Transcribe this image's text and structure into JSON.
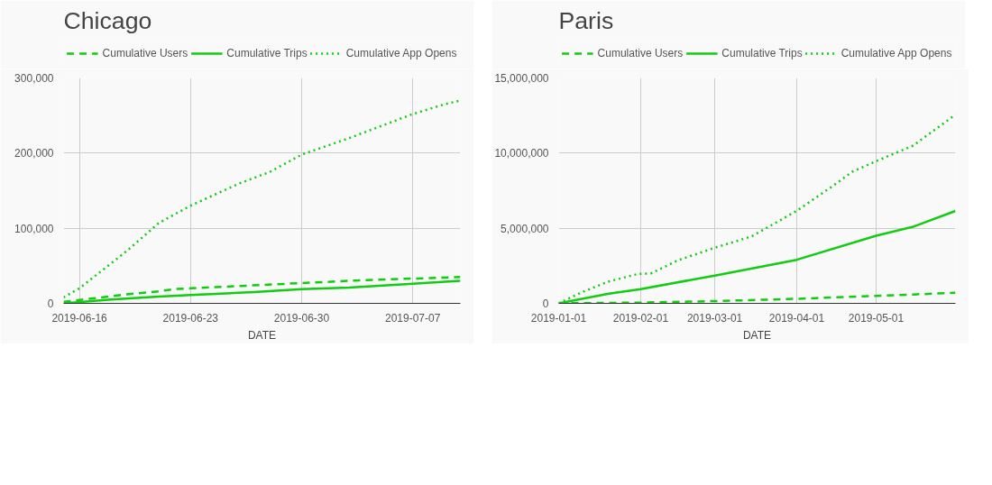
{
  "chart_data": [
    {
      "type": "line",
      "title": "Chicago",
      "xlabel": "DATE",
      "legend": "top",
      "grid": true,
      "marker": "none",
      "xlim": [
        "2019-06-15",
        "2019-07-10"
      ],
      "xticks": [
        "2019-06-16",
        "2019-06-23",
        "2019-06-30",
        "2019-07-07"
      ],
      "ylim": [
        0,
        300000
      ],
      "yticks": [
        {
          "value": 0,
          "label": "0"
        },
        {
          "value": 100000,
          "label": "100,000"
        },
        {
          "value": 200000,
          "label": "200,000"
        },
        {
          "value": 300000,
          "label": "300,000"
        }
      ],
      "series": [
        {
          "name": "Cumulative Users",
          "color": "#11cc11",
          "line_style": "dashed",
          "x": [
            "2019-06-15",
            "2019-06-17",
            "2019-06-19",
            "2019-06-21",
            "2019-06-22",
            "2019-06-23",
            "2019-06-26",
            "2019-06-30",
            "2019-07-03",
            "2019-07-07",
            "2019-07-10"
          ],
          "values": [
            2000,
            7000,
            12000,
            16000,
            19000,
            20000,
            23000,
            27000,
            30000,
            33000,
            35000
          ]
        },
        {
          "name": "Cumulative Trips",
          "color": "#11cc11",
          "line_style": "solid",
          "x": [
            "2019-06-15",
            "2019-06-18",
            "2019-06-21",
            "2019-06-23",
            "2019-06-27",
            "2019-06-30",
            "2019-07-03",
            "2019-07-07",
            "2019-07-10"
          ],
          "values": [
            0,
            5000,
            9000,
            11000,
            15000,
            19000,
            21000,
            26000,
            30000
          ]
        },
        {
          "name": "Cumulative App Opens",
          "color": "#11cc11",
          "line_style": "dotted",
          "x": [
            "2019-06-15",
            "2019-06-16",
            "2019-06-19",
            "2019-06-21",
            "2019-06-23",
            "2019-06-26",
            "2019-06-28",
            "2019-06-30",
            "2019-07-03",
            "2019-07-07",
            "2019-07-09",
            "2019-07-10"
          ],
          "values": [
            8000,
            20000,
            70000,
            107000,
            130000,
            159000,
            175000,
            198000,
            220000,
            252000,
            265000,
            270000
          ]
        }
      ]
    },
    {
      "type": "line",
      "title": "Paris",
      "xlabel": "DATE",
      "legend": "top",
      "grid": true,
      "marker": "none",
      "xlim": [
        "2019-01-01",
        "2019-05-31"
      ],
      "xticks": [
        "2019-01-01",
        "2019-02-01",
        "2019-03-01",
        "2019-04-01",
        "2019-05-01"
      ],
      "ylim": [
        0,
        15000000
      ],
      "yticks": [
        {
          "value": 0,
          "label": "0"
        },
        {
          "value": 5000000,
          "label": "5,000,000"
        },
        {
          "value": 10000000,
          "label": "10,000,000"
        },
        {
          "value": 15000000,
          "label": "15,000,000"
        }
      ],
      "series": [
        {
          "name": "Cumulative Users",
          "color": "#11cc11",
          "line_style": "dashed",
          "x": [
            "2019-01-01",
            "2019-02-01",
            "2019-03-01",
            "2019-04-01",
            "2019-05-01",
            "2019-05-31"
          ],
          "values": [
            0,
            50000,
            150000,
            300000,
            500000,
            700000
          ]
        },
        {
          "name": "Cumulative Trips",
          "color": "#11cc11",
          "line_style": "solid",
          "x": [
            "2019-01-01",
            "2019-01-20",
            "2019-02-01",
            "2019-03-01",
            "2019-04-01",
            "2019-05-01",
            "2019-05-15",
            "2019-05-31"
          ],
          "values": [
            0,
            650000,
            950000,
            1850000,
            2900000,
            4500000,
            5100000,
            6150000
          ]
        },
        {
          "name": "Cumulative App Opens",
          "color": "#11cc11",
          "line_style": "dotted",
          "x": [
            "2019-01-01",
            "2019-01-10",
            "2019-01-20",
            "2019-01-31",
            "2019-02-05",
            "2019-02-15",
            "2019-03-01",
            "2019-03-15",
            "2019-03-25",
            "2019-04-01",
            "2019-04-15",
            "2019-04-22",
            "2019-05-01",
            "2019-05-15",
            "2019-05-31"
          ],
          "values": [
            0,
            760000,
            1460000,
            1960000,
            2000000,
            2860000,
            3700000,
            4460000,
            5460000,
            6160000,
            7860000,
            8760000,
            9460000,
            10500000,
            12560000
          ]
        }
      ]
    }
  ]
}
